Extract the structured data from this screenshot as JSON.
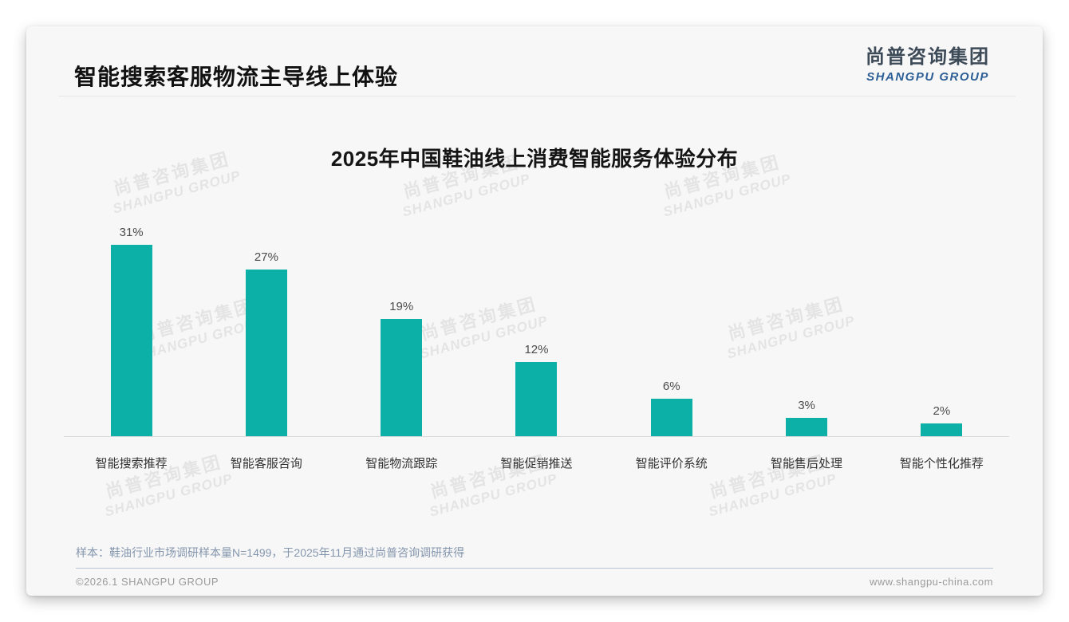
{
  "header": {
    "title": "智能搜索客服物流主导线上体验",
    "logo_cn": "尚普咨询集团",
    "logo_en": "SHANGPU GROUP"
  },
  "watermark": {
    "cn": "尚普咨询集团",
    "en": "SHANGPU GROUP"
  },
  "chart_data": {
    "type": "bar",
    "title": "2025年中国鞋油线上消费智能服务体验分布",
    "categories": [
      "智能搜索推荐",
      "智能客服咨询",
      "智能物流跟踪",
      "智能促销推送",
      "智能评价系统",
      "智能售后处理",
      "智能个性化推荐"
    ],
    "values": [
      31,
      27,
      19,
      12,
      6,
      3,
      2
    ],
    "unit": "%",
    "bar_color": "#0db0a6",
    "xlabel": "",
    "ylabel": "",
    "ylim": [
      0,
      35
    ],
    "grid": false,
    "legend": false,
    "value_labels": [
      "31%",
      "27%",
      "19%",
      "12%",
      "6%",
      "3%",
      "2%"
    ]
  },
  "footnote": {
    "text": "样本：鞋油行业市场调研样本量N=1499，于2025年11月通过尚普咨询调研获得"
  },
  "footer": {
    "left": "©2026.1 SHANGPU GROUP",
    "right": "www.shangpu-china.com"
  }
}
